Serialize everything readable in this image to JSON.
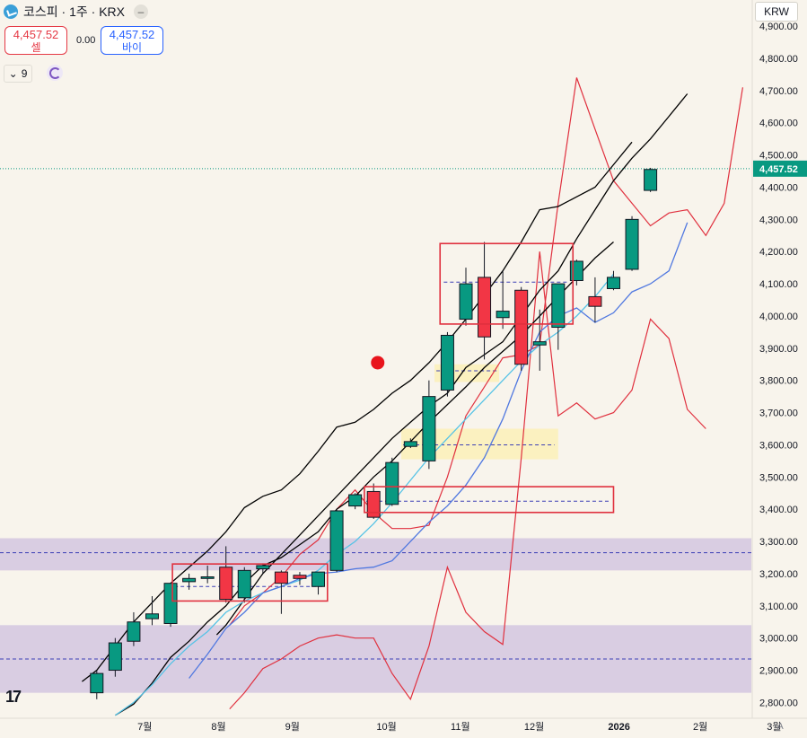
{
  "header": {
    "title": "코스피 · 1주 · KRX",
    "sell_price": "4,457.52",
    "sell_label": "셀",
    "spread": "0.00",
    "buy_price": "4,457.52",
    "buy_label": "바이",
    "indicator_count": "9",
    "currency": "KRW",
    "auto_label": "A",
    "logo_text": "17"
  },
  "chart_data": {
    "type": "candlestick",
    "y_ticks": [
      "2,800.00",
      "2,900.00",
      "3,000.00",
      "3,100.00",
      "3,200.00",
      "3,300.00",
      "3,400.00",
      "3,500.00",
      "3,600.00",
      "3,700.00",
      "3,800.00",
      "3,900.00",
      "4,000.00",
      "4,100.00",
      "4,200.00",
      "4,300.00",
      "4,400.00",
      "4,500.00",
      "4,600.00",
      "4,700.00",
      "4,800.00",
      "4,900.00"
    ],
    "ylim": [
      2780,
      4920
    ],
    "current_price": 4457.52,
    "current_price_label": "4,457.52",
    "x_ticks": [
      {
        "label": "7월",
        "t": 7.6
      },
      {
        "label": "8월",
        "t": 11.6
      },
      {
        "label": "9월",
        "t": 15.6
      },
      {
        "label": "10월",
        "t": 20.7
      },
      {
        "label": "11월",
        "t": 24.7
      },
      {
        "label": "12월",
        "t": 28.7
      },
      {
        "label": "2026",
        "t": 33.3
      },
      {
        "label": "2월",
        "t": 37.7
      },
      {
        "label": "3월",
        "t": 41.7
      }
    ],
    "candles": [
      {
        "o": 2830,
        "h": 2900,
        "l": 2810,
        "c": 2890
      },
      {
        "o": 2900,
        "h": 3000,
        "l": 2880,
        "c": 2985
      },
      {
        "o": 2990,
        "h": 3080,
        "l": 2975,
        "c": 3050
      },
      {
        "o": 3060,
        "h": 3130,
        "l": 3040,
        "c": 3075
      },
      {
        "o": 3045,
        "h": 3170,
        "l": 3035,
        "c": 3170
      },
      {
        "o": 3175,
        "h": 3200,
        "l": 3150,
        "c": 3185
      },
      {
        "o": 3185,
        "h": 3225,
        "l": 3170,
        "c": 3190
      },
      {
        "o": 3220,
        "h": 3285,
        "l": 3110,
        "c": 3120
      },
      {
        "o": 3125,
        "h": 3220,
        "l": 3110,
        "c": 3210
      },
      {
        "o": 3215,
        "h": 3232,
        "l": 3200,
        "c": 3225
      },
      {
        "o": 3205,
        "h": 3210,
        "l": 3075,
        "c": 3170
      },
      {
        "o": 3195,
        "h": 3205,
        "l": 3165,
        "c": 3185
      },
      {
        "o": 3160,
        "h": 3205,
        "l": 3135,
        "c": 3205
      },
      {
        "o": 3210,
        "h": 3400,
        "l": 3205,
        "c": 3395
      },
      {
        "o": 3410,
        "h": 3450,
        "l": 3400,
        "c": 3445
      },
      {
        "o": 3455,
        "h": 3480,
        "l": 3370,
        "c": 3375
      },
      {
        "o": 3415,
        "h": 3560,
        "l": 3410,
        "c": 3545
      },
      {
        "o": 3595,
        "h": 3620,
        "l": 3590,
        "c": 3610
      },
      {
        "o": 3550,
        "h": 3800,
        "l": 3525,
        "c": 3750
      },
      {
        "o": 3770,
        "h": 3950,
        "l": 3750,
        "c": 3940
      },
      {
        "o": 3990,
        "h": 4150,
        "l": 3970,
        "c": 4100
      },
      {
        "o": 4120,
        "h": 4230,
        "l": 3865,
        "c": 3935
      },
      {
        "o": 3995,
        "h": 4140,
        "l": 3960,
        "c": 4015
      },
      {
        "o": 4080,
        "h": 4090,
        "l": 3830,
        "c": 3850
      },
      {
        "o": 3910,
        "h": 4020,
        "l": 3830,
        "c": 3920
      },
      {
        "o": 3965,
        "h": 4100,
        "l": 3895,
        "c": 4100
      },
      {
        "o": 4110,
        "h": 4175,
        "l": 4095,
        "c": 4170
      },
      {
        "o": 4060,
        "h": 4120,
        "l": 3980,
        "c": 4030
      },
      {
        "o": 4085,
        "h": 4140,
        "l": 4080,
        "c": 4120
      },
      {
        "o": 4145,
        "h": 4310,
        "l": 4140,
        "c": 4300
      },
      {
        "o": 4390,
        "h": 4460,
        "l": 4385,
        "c": 4455
      }
    ],
    "series": [
      {
        "color": "#000000",
        "points": [
          [
            6,
            2760
          ],
          [
            7,
            2795
          ],
          [
            8,
            2860
          ],
          [
            9,
            2940
          ],
          [
            10,
            2990
          ],
          [
            11,
            3050
          ],
          [
            12,
            3100
          ],
          [
            13,
            3170
          ],
          [
            14,
            3225
          ],
          [
            15,
            3250
          ],
          [
            16,
            3290
          ],
          [
            17,
            3330
          ],
          [
            18,
            3400
          ],
          [
            19,
            3440
          ],
          [
            20,
            3500
          ],
          [
            21,
            3550
          ],
          [
            22,
            3610
          ],
          [
            23,
            3670
          ],
          [
            24,
            3725
          ],
          [
            25,
            3780
          ],
          [
            26,
            3840
          ],
          [
            27,
            3890
          ],
          [
            28,
            3940
          ],
          [
            29,
            4000
          ],
          [
            30,
            4060
          ],
          [
            31,
            4120
          ],
          [
            32,
            4180
          ],
          [
            33,
            4230
          ]
        ]
      },
      {
        "color": "#000000",
        "points": [
          [
            11.5,
            3010
          ],
          [
            12,
            3040
          ],
          [
            13,
            3120
          ],
          [
            14,
            3200
          ],
          [
            15,
            3260
          ],
          [
            16,
            3320
          ],
          [
            17,
            3380
          ],
          [
            18,
            3440
          ],
          [
            19,
            3500
          ],
          [
            20,
            3560
          ],
          [
            21,
            3620
          ],
          [
            22,
            3670
          ],
          [
            23,
            3720
          ],
          [
            24,
            3760
          ],
          [
            25,
            3840
          ],
          [
            26,
            3880
          ],
          [
            27,
            3920
          ],
          [
            28,
            4000
          ],
          [
            29,
            4080
          ],
          [
            30,
            4140
          ],
          [
            31,
            4240
          ],
          [
            32,
            4330
          ],
          [
            33,
            4420
          ],
          [
            34,
            4490
          ],
          [
            35,
            4550
          ],
          [
            36,
            4620
          ],
          [
            37,
            4690
          ]
        ]
      },
      {
        "color": "#000000",
        "points": [
          [
            4.2,
            2865
          ],
          [
            5,
            2900
          ],
          [
            6,
            2975
          ],
          [
            7,
            3050
          ],
          [
            8,
            3110
          ],
          [
            9,
            3170
          ],
          [
            10,
            3220
          ],
          [
            11,
            3270
          ],
          [
            12,
            3330
          ],
          [
            13,
            3405
          ],
          [
            14,
            3440
          ],
          [
            15,
            3460
          ],
          [
            16,
            3510
          ],
          [
            17,
            3580
          ],
          [
            18,
            3655
          ],
          [
            19,
            3670
          ],
          [
            20,
            3710
          ],
          [
            21,
            3760
          ],
          [
            22,
            3800
          ],
          [
            23,
            3855
          ],
          [
            24,
            3920
          ],
          [
            25,
            3990
          ],
          [
            26,
            4065
          ],
          [
            27,
            4140
          ],
          [
            28,
            4230
          ],
          [
            29,
            4330
          ],
          [
            30,
            4340
          ],
          [
            31,
            4370
          ],
          [
            32,
            4400
          ],
          [
            33,
            4470
          ],
          [
            34,
            4540
          ]
        ]
      },
      {
        "color": "#56c3e6",
        "points": [
          [
            6,
            2760
          ],
          [
            7,
            2800
          ],
          [
            8,
            2855
          ],
          [
            9,
            2920
          ],
          [
            10,
            2975
          ],
          [
            11,
            3020
          ],
          [
            12,
            3080
          ],
          [
            13,
            3115
          ],
          [
            14,
            3140
          ],
          [
            15,
            3160
          ],
          [
            16,
            3180
          ],
          [
            17,
            3210
          ],
          [
            18,
            3260
          ],
          [
            19,
            3300
          ],
          [
            20,
            3355
          ],
          [
            21,
            3420
          ],
          [
            22,
            3490
          ],
          [
            23,
            3560
          ],
          [
            24,
            3620
          ],
          [
            25,
            3680
          ],
          [
            26,
            3740
          ],
          [
            27,
            3800
          ],
          [
            28,
            3860
          ],
          [
            29,
            3910
          ],
          [
            30,
            3950
          ],
          [
            31,
            4000
          ],
          [
            32,
            4060
          ],
          [
            33,
            4130
          ]
        ]
      },
      {
        "color": "#5078e0",
        "points": [
          [
            10,
            2875
          ],
          [
            11,
            2950
          ],
          [
            12,
            3030
          ],
          [
            13,
            3080
          ],
          [
            14,
            3140
          ],
          [
            15,
            3160
          ],
          [
            16,
            3185
          ],
          [
            17,
            3200
          ],
          [
            18,
            3205
          ],
          [
            19,
            3215
          ],
          [
            20,
            3220
          ],
          [
            21,
            3240
          ],
          [
            22,
            3300
          ],
          [
            23,
            3360
          ],
          [
            24,
            3410
          ],
          [
            25,
            3475
          ],
          [
            26,
            3560
          ],
          [
            27,
            3680
          ],
          [
            28,
            3830
          ],
          [
            29,
            3950
          ],
          [
            30,
            4000
          ],
          [
            31,
            4025
          ],
          [
            32,
            3980
          ],
          [
            33,
            4010
          ],
          [
            34,
            4075
          ],
          [
            35,
            4100
          ],
          [
            36,
            4140
          ],
          [
            37,
            4290
          ]
        ]
      }
    ],
    "band_upper": [
      [
        12.2,
        3040
      ],
      [
        13,
        3100
      ],
      [
        14,
        3140
      ],
      [
        15,
        3190
      ],
      [
        16,
        3260
      ],
      [
        17,
        3305
      ],
      [
        18,
        3400
      ],
      [
        19,
        3460
      ],
      [
        20,
        3390
      ],
      [
        21,
        3340
      ],
      [
        22,
        3340
      ],
      [
        23,
        3350
      ],
      [
        24,
        3500
      ],
      [
        25,
        3690
      ],
      [
        26,
        3780
      ],
      [
        27,
        3870
      ],
      [
        28,
        3880
      ],
      [
        29,
        3910
      ],
      [
        30,
        4350
      ],
      [
        31,
        4740
      ],
      [
        32,
        4580
      ],
      [
        33,
        4420
      ],
      [
        34,
        4350
      ],
      [
        35,
        4280
      ],
      [
        36,
        4320
      ],
      [
        37,
        4330
      ],
      [
        38,
        4250
      ],
      [
        39,
        4350
      ],
      [
        40,
        4710
      ]
    ],
    "band_lower": [
      [
        12.2,
        2780
      ],
      [
        13,
        2830
      ],
      [
        14,
        2905
      ],
      [
        15,
        2935
      ],
      [
        16,
        2975
      ],
      [
        17,
        3000
      ],
      [
        18,
        3010
      ],
      [
        19,
        3000
      ],
      [
        20,
        3000
      ],
      [
        21,
        2890
      ],
      [
        22,
        2810
      ],
      [
        23,
        2975
      ],
      [
        24,
        3220
      ],
      [
        25,
        3080
      ],
      [
        26,
        3020
      ],
      [
        27,
        2980
      ],
      [
        28,
        3560
      ],
      [
        29,
        4200
      ],
      [
        30,
        3690
      ],
      [
        31,
        3730
      ],
      [
        32,
        3680
      ],
      [
        33,
        3700
      ],
      [
        34,
        3770
      ],
      [
        35,
        3990
      ],
      [
        36,
        3930
      ],
      [
        37,
        3710
      ],
      [
        38,
        3650
      ]
    ],
    "shaded_bands": [
      {
        "lo": 3210,
        "hi": 3310,
        "color": "#c5b3dc"
      },
      {
        "lo": 2830,
        "hi": 3040,
        "color": "#c5b3dc"
      }
    ],
    "dashed_levels": [
      3265,
      2935,
      3160,
      3425,
      3600,
      3830,
      4105
    ],
    "red_boxes": [
      {
        "t0": 9.1,
        "t1": 17.5,
        "lo": 3115,
        "hi": 3230
      },
      {
        "t0": 19.5,
        "t1": 33.0,
        "lo": 3390,
        "hi": 3470
      },
      {
        "t0": 23.6,
        "t1": 30.8,
        "lo": 3975,
        "hi": 4225
      }
    ],
    "yellow_boxes": [
      {
        "t0": 21.5,
        "t1": 30.0,
        "lo": 3555,
        "hi": 3650
      },
      {
        "t0": 23.3,
        "t1": 26.8,
        "lo": 3795,
        "hi": 3850
      }
    ],
    "signal_dot": {
      "t": 21.0,
      "price": 3855
    }
  }
}
